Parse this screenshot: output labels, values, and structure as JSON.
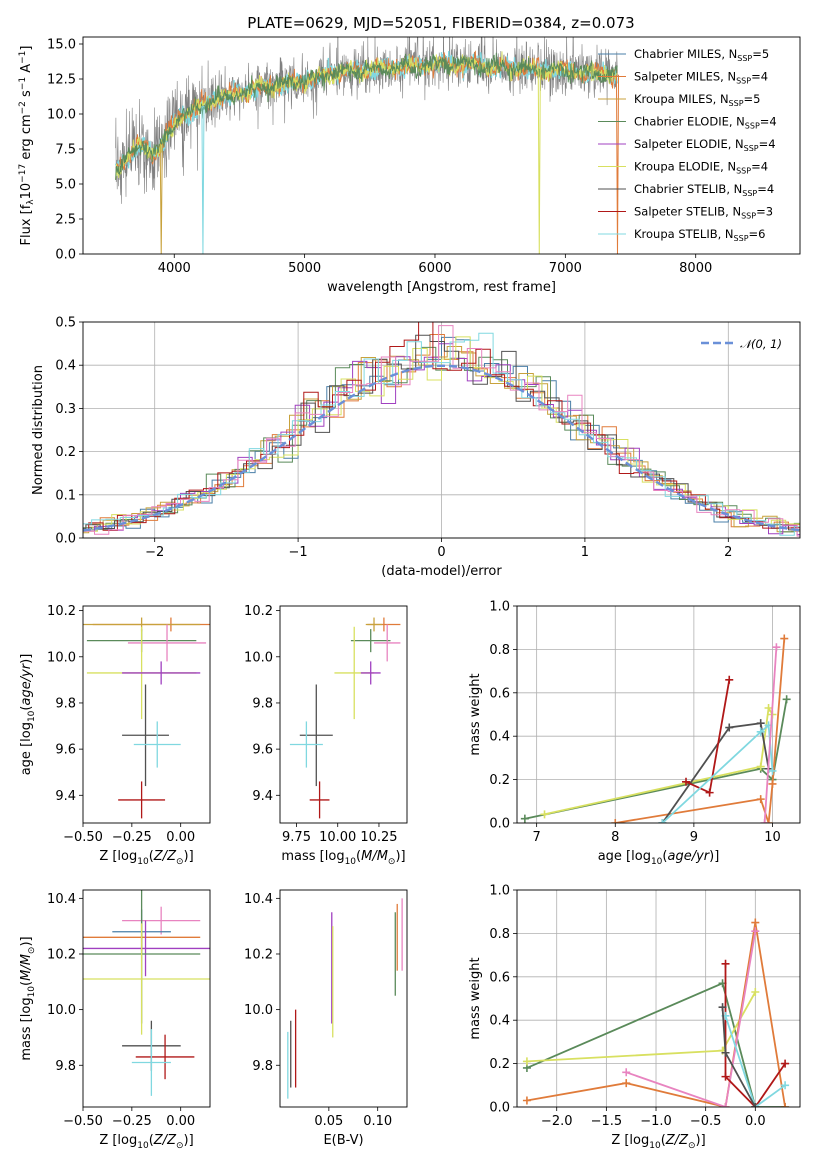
{
  "title": "PLATE=0629, MJD=52051, FIBERID=0384, z=0.073",
  "colors": {
    "data": "#808080",
    "chabrier_miles": "#4a7fa8",
    "salpeter_miles": "#e07b3a",
    "kroupa_miles": "#c8a23c",
    "chabrier_elodie": "#5a8a5a",
    "salpeter_elodie": "#a040c0",
    "kroupa_elodie": "#d8e060",
    "chabrier_stelib": "#505050",
    "salpeter_stelib": "#b01818",
    "kroupa_stelib": "#80d8e0",
    "normal": "#6a90d8",
    "extra_pink": "#e884c0"
  },
  "chart_data": [
    {
      "id": "spectrum",
      "type": "line",
      "xlabel": "wavelength [Angstrom, rest frame]",
      "ylabel": "Flux [f_λ 10^-17 erg cm^-2 s^-1 A^-1]",
      "xlim": [
        3300,
        8800
      ],
      "ylim": [
        0,
        15.5
      ],
      "xticks": [
        4000,
        5000,
        6000,
        7000,
        8000
      ],
      "yticks": [
        0.0,
        2.5,
        5.0,
        7.5,
        10.0,
        12.5,
        15.0
      ],
      "legend_position": "right",
      "legend": [
        {
          "text": "Chabrier MILES, N",
          "sub": "SSP",
          "suffix": "=5",
          "color_key": "chabrier_miles"
        },
        {
          "text": "Salpeter MILES, N",
          "sub": "SSP",
          "suffix": "=4",
          "color_key": "salpeter_miles"
        },
        {
          "text": "Kroupa MILES, N",
          "sub": "SSP",
          "suffix": "=5",
          "color_key": "kroupa_miles"
        },
        {
          "text": "Chabrier ELODIE, N",
          "sub": "SSP",
          "suffix": "=4",
          "color_key": "chabrier_elodie"
        },
        {
          "text": "Salpeter ELODIE, N",
          "sub": "SSP",
          "suffix": "=4",
          "color_key": "salpeter_elodie"
        },
        {
          "text": "Kroupa ELODIE, N",
          "sub": "SSP",
          "suffix": "=4",
          "color_key": "kroupa_elodie"
        },
        {
          "text": "Chabrier STELIB, N",
          "sub": "SSP",
          "suffix": "=4",
          "color_key": "chabrier_stelib"
        },
        {
          "text": "Salpeter STELIB, N",
          "sub": "SSP",
          "suffix": "=3",
          "color_key": "salpeter_stelib"
        },
        {
          "text": "Kroupa STELIB, N",
          "sub": "SSP",
          "suffix": "=6",
          "color_key": "kroupa_stelib"
        }
      ],
      "model_continuum": {
        "x": [
          3550,
          3650,
          3750,
          3850,
          3950,
          4050,
          4150,
          4300,
          4500,
          4700,
          4900,
          5100,
          5300,
          5500,
          5700,
          5900,
          6100,
          6300,
          6500,
          6700,
          6900,
          7100,
          7300,
          7400
        ],
        "y": [
          6.0,
          7.0,
          7.8,
          7.2,
          8.5,
          10.0,
          10.2,
          11.0,
          11.5,
          12.0,
          12.2,
          12.6,
          13.0,
          13.2,
          13.3,
          13.5,
          13.6,
          13.5,
          13.3,
          13.2,
          13.1,
          13.0,
          12.9,
          12.8
        ]
      },
      "data_region": [
        3550,
        7400
      ],
      "absorption_dips": [
        {
          "x": 3900,
          "color_key": "kroupa_miles"
        },
        {
          "x": 4220,
          "color_key": "kroupa_stelib"
        },
        {
          "x": 6800,
          "color_key": "kroupa_elodie"
        },
        {
          "x": 7400,
          "color_key": "salpeter_miles"
        }
      ]
    },
    {
      "id": "residuals",
      "type": "histogram",
      "xlabel": "(data-model)/error",
      "ylabel": "Normed distribution",
      "xlim": [
        -2.5,
        2.5
      ],
      "ylim": [
        0,
        0.5
      ],
      "xticks": [
        -2,
        -1,
        0,
        1,
        2
      ],
      "yticks": [
        0.0,
        0.1,
        0.2,
        0.3,
        0.4,
        0.5
      ],
      "grid": true,
      "legend_position": "top-right",
      "legend": [
        "𝒩(0, 1)"
      ],
      "bin_width": 0.1,
      "series_colors": [
        "chabrier_miles",
        "salpeter_miles",
        "kroupa_miles",
        "chabrier_elodie",
        "salpeter_elodie",
        "kroupa_elodie",
        "chabrier_stelib",
        "salpeter_stelib",
        "kroupa_stelib",
        "extra_pink"
      ],
      "reference_curve": "normal(0,1)"
    },
    {
      "id": "age_vs_Z",
      "type": "scatter",
      "xlabel": "Z [log10(Z/Z⊙)]",
      "ylabel": "age  [log10(age/yr)]",
      "xlim": [
        -0.5,
        0.15
      ],
      "ylim": [
        9.28,
        10.22
      ],
      "xticks": [
        -0.5,
        -0.25,
        0.0
      ],
      "xtick_labels": [
        "−0.50",
        "−0.25",
        "0.00"
      ],
      "yticks": [
        9.4,
        9.6,
        9.8,
        10.0,
        10.2
      ],
      "points": [
        {
          "x": -0.05,
          "y": 10.14,
          "xerr": 0.4,
          "yerr": 0.03,
          "c": "salpeter_miles"
        },
        {
          "x": -0.2,
          "y": 10.14,
          "xerr": 0.3,
          "yerr": 0.03,
          "c": "kroupa_miles"
        },
        {
          "x": -0.2,
          "y": 10.07,
          "xerr": 0.28,
          "yerr": 0.05,
          "c": "chabrier_elodie"
        },
        {
          "x": -0.07,
          "y": 10.06,
          "xerr": 0.2,
          "yerr": 0.08,
          "c": "extra_pink"
        },
        {
          "x": -0.2,
          "y": 9.93,
          "xerr": 0.28,
          "yerr": 0.2,
          "c": "kroupa_elodie"
        },
        {
          "x": -0.1,
          "y": 9.93,
          "xerr": 0.2,
          "yerr": 0.05,
          "c": "salpeter_elodie"
        },
        {
          "x": -0.18,
          "y": 9.66,
          "xerr": 0.12,
          "yerr": 0.22,
          "c": "chabrier_stelib"
        },
        {
          "x": -0.12,
          "y": 9.62,
          "xerr": 0.12,
          "yerr": 0.1,
          "c": "kroupa_stelib"
        },
        {
          "x": -0.2,
          "y": 9.38,
          "xerr": 0.12,
          "yerr": 0.08,
          "c": "salpeter_stelib"
        }
      ]
    },
    {
      "id": "age_vs_mass",
      "type": "scatter",
      "xlabel": "mass [log10(M/M⊙)]",
      "ylabel": "",
      "xlim": [
        9.65,
        10.42
      ],
      "ylim": [
        9.28,
        10.22
      ],
      "xticks": [
        9.75,
        10.0,
        10.25
      ],
      "xtick_labels": [
        "9.75",
        "10.00",
        "10.25"
      ],
      "yticks": [
        9.4,
        9.6,
        9.8,
        10.0,
        10.2
      ],
      "points": [
        {
          "x": 10.28,
          "y": 10.14,
          "xerr": 0.1,
          "yerr": 0.03,
          "c": "salpeter_miles"
        },
        {
          "x": 10.22,
          "y": 10.14,
          "xerr": 0.05,
          "yerr": 0.03,
          "c": "kroupa_miles"
        },
        {
          "x": 10.2,
          "y": 10.07,
          "xerr": 0.12,
          "yerr": 0.05,
          "c": "chabrier_elodie"
        },
        {
          "x": 10.3,
          "y": 10.06,
          "xerr": 0.08,
          "yerr": 0.08,
          "c": "extra_pink"
        },
        {
          "x": 10.1,
          "y": 9.93,
          "xerr": 0.12,
          "yerr": 0.2,
          "c": "kroupa_elodie"
        },
        {
          "x": 10.2,
          "y": 9.93,
          "xerr": 0.06,
          "yerr": 0.05,
          "c": "salpeter_elodie"
        },
        {
          "x": 9.87,
          "y": 9.66,
          "xerr": 0.1,
          "yerr": 0.22,
          "c": "chabrier_stelib"
        },
        {
          "x": 9.81,
          "y": 9.62,
          "xerr": 0.1,
          "yerr": 0.1,
          "c": "kroupa_stelib"
        },
        {
          "x": 9.89,
          "y": 9.38,
          "xerr": 0.06,
          "yerr": 0.08,
          "c": "salpeter_stelib"
        }
      ]
    },
    {
      "id": "massweight_vs_age",
      "type": "line",
      "xlabel": "age  [log10(age/yr)]",
      "ylabel": "mass weight",
      "xlim": [
        6.75,
        10.35
      ],
      "ylim": [
        0,
        1
      ],
      "xticks": [
        7,
        8,
        9,
        10
      ],
      "yticks": [
        0.0,
        0.2,
        0.4,
        0.6,
        0.8,
        1.0
      ],
      "grid": true,
      "series": [
        {
          "c": "chabrier_elodie",
          "x": [
            6.85,
            9.85,
            10.0,
            10.18
          ],
          "y": [
            0.02,
            0.25,
            0.2,
            0.57
          ]
        },
        {
          "c": "kroupa_elodie",
          "x": [
            7.1,
            9.85,
            9.95,
            10.0
          ],
          "y": [
            0.04,
            0.26,
            0.53,
            0.5
          ]
        },
        {
          "c": "salpeter_miles",
          "x": [
            8.0,
            9.85,
            9.95,
            10.0,
            10.15
          ],
          "y": [
            0.0,
            0.11,
            0.0,
            0.18,
            0.85
          ]
        },
        {
          "c": "chabrier_stelib",
          "x": [
            8.6,
            9.45,
            9.85,
            9.95
          ],
          "y": [
            0.0,
            0.44,
            0.46,
            0.25
          ]
        },
        {
          "c": "salpeter_stelib",
          "x": [
            8.9,
            9.2,
            9.45
          ],
          "y": [
            0.19,
            0.14,
            0.66
          ]
        },
        {
          "c": "kroupa_stelib",
          "x": [
            8.6,
            9.85,
            9.95,
            10.0
          ],
          "y": [
            0.0,
            0.42,
            0.45,
            0.24
          ]
        },
        {
          "c": "extra_pink",
          "x": [
            9.9,
            10.05
          ],
          "y": [
            0.0,
            0.81
          ]
        }
      ]
    },
    {
      "id": "mass_vs_Z",
      "type": "scatter",
      "xlabel": "Z [log10(Z/Z⊙)]",
      "ylabel": "mass [log10(M/M⊙)]",
      "xlim": [
        -0.5,
        0.15
      ],
      "ylim": [
        9.65,
        10.43
      ],
      "xticks": [
        -0.5,
        -0.25,
        0.0
      ],
      "xtick_labels": [
        "−0.50",
        "−0.25",
        "0.00"
      ],
      "yticks": [
        9.8,
        10.0,
        10.2,
        10.4
      ],
      "points": [
        {
          "x": -0.1,
          "y": 10.32,
          "xerr": 0.2,
          "yerr": 0.05,
          "c": "extra_pink"
        },
        {
          "x": -0.2,
          "y": 10.28,
          "xerr": 0.15,
          "yerr": 0.08,
          "c": "chabrier_miles"
        },
        {
          "x": -0.2,
          "y": 10.26,
          "xerr": 0.3,
          "yerr": 0.05,
          "c": "salpeter_miles"
        },
        {
          "x": -0.18,
          "y": 10.22,
          "xerr": 0.4,
          "yerr": 0.1,
          "c": "salpeter_elodie"
        },
        {
          "x": -0.2,
          "y": 10.2,
          "xerr": 0.3,
          "yerr": 0.25,
          "c": "chabrier_elodie"
        },
        {
          "x": -0.2,
          "y": 10.11,
          "xerr": 0.35,
          "yerr": 0.2,
          "c": "kroupa_elodie"
        },
        {
          "x": -0.15,
          "y": 9.87,
          "xerr": 0.15,
          "yerr": 0.09,
          "c": "chabrier_stelib"
        },
        {
          "x": -0.08,
          "y": 9.83,
          "xerr": 0.15,
          "yerr": 0.08,
          "c": "salpeter_stelib"
        },
        {
          "x": -0.15,
          "y": 9.81,
          "xerr": 0.1,
          "yerr": 0.12,
          "c": "kroupa_stelib"
        }
      ]
    },
    {
      "id": "mass_vs_EBV",
      "type": "scatter",
      "xlabel": "E(B-V)",
      "ylabel": "",
      "xlim": [
        0.0,
        0.13
      ],
      "ylim": [
        9.65,
        10.43
      ],
      "xticks": [
        0.05,
        0.1
      ],
      "xtick_labels": [
        "0.05",
        "0.10"
      ],
      "yticks": [
        9.8,
        10.0,
        10.2,
        10.4
      ],
      "points": [
        {
          "x": 0.008,
          "y": 9.8,
          "xerr": 0,
          "yerr": 0.12,
          "c": "kroupa_stelib"
        },
        {
          "x": 0.011,
          "y": 9.84,
          "xerr": 0,
          "yerr": 0.12,
          "c": "chabrier_stelib"
        },
        {
          "x": 0.016,
          "y": 9.86,
          "xerr": 0,
          "yerr": 0.14,
          "c": "salpeter_stelib"
        },
        {
          "x": 0.053,
          "y": 10.15,
          "xerr": 0,
          "yerr": 0.2,
          "c": "salpeter_elodie"
        },
        {
          "x": 0.054,
          "y": 10.1,
          "xerr": 0,
          "yerr": 0.2,
          "c": "kroupa_elodie"
        },
        {
          "x": 0.118,
          "y": 10.2,
          "xerr": 0,
          "yerr": 0.15,
          "c": "chabrier_elodie"
        },
        {
          "x": 0.12,
          "y": 10.26,
          "xerr": 0,
          "yerr": 0.12,
          "c": "salpeter_miles"
        },
        {
          "x": 0.125,
          "y": 10.27,
          "xerr": 0,
          "yerr": 0.13,
          "c": "extra_pink"
        }
      ]
    },
    {
      "id": "massweight_vs_Z",
      "type": "line",
      "xlabel": "Z [log10(Z/Z⊙)]",
      "ylabel": "mass weight",
      "xlim": [
        -2.4,
        0.45
      ],
      "ylim": [
        0,
        1
      ],
      "xticks": [
        -2.0,
        -1.5,
        -1.0,
        -0.5,
        0.0
      ],
      "xtick_labels": [
        "−2.0",
        "−1.5",
        "−1.0",
        "−0.5",
        "0.0"
      ],
      "yticks": [
        0.0,
        0.2,
        0.4,
        0.6,
        0.8,
        1.0
      ],
      "grid": true,
      "series": [
        {
          "c": "chabrier_elodie",
          "x": [
            -2.3,
            -0.33,
            0.0,
            0.3
          ],
          "y": [
            0.18,
            0.57,
            0.0,
            0.0
          ]
        },
        {
          "c": "kroupa_elodie",
          "x": [
            -2.3,
            -0.33,
            0.0
          ],
          "y": [
            0.21,
            0.26,
            0.53
          ]
        },
        {
          "c": "salpeter_miles",
          "x": [
            -2.3,
            -1.3,
            -0.3,
            0.0,
            0.3
          ],
          "y": [
            0.03,
            0.11,
            0.0,
            0.85,
            0.0
          ]
        },
        {
          "c": "extra_pink",
          "x": [
            -1.3,
            -0.3,
            0.0
          ],
          "y": [
            0.16,
            0.0,
            0.81
          ]
        },
        {
          "c": "salpeter_stelib",
          "x": [
            -0.3,
            -0.3,
            0.0,
            0.3
          ],
          "y": [
            0.66,
            0.14,
            0.0,
            0.2
          ]
        },
        {
          "c": "kroupa_stelib",
          "x": [
            -0.3,
            0.0,
            0.3
          ],
          "y": [
            0.42,
            0.0,
            0.1
          ]
        },
        {
          "c": "chabrier_stelib",
          "x": [
            -0.33,
            -0.3,
            0.0
          ],
          "y": [
            0.46,
            0.25,
            0.0
          ]
        }
      ]
    }
  ]
}
